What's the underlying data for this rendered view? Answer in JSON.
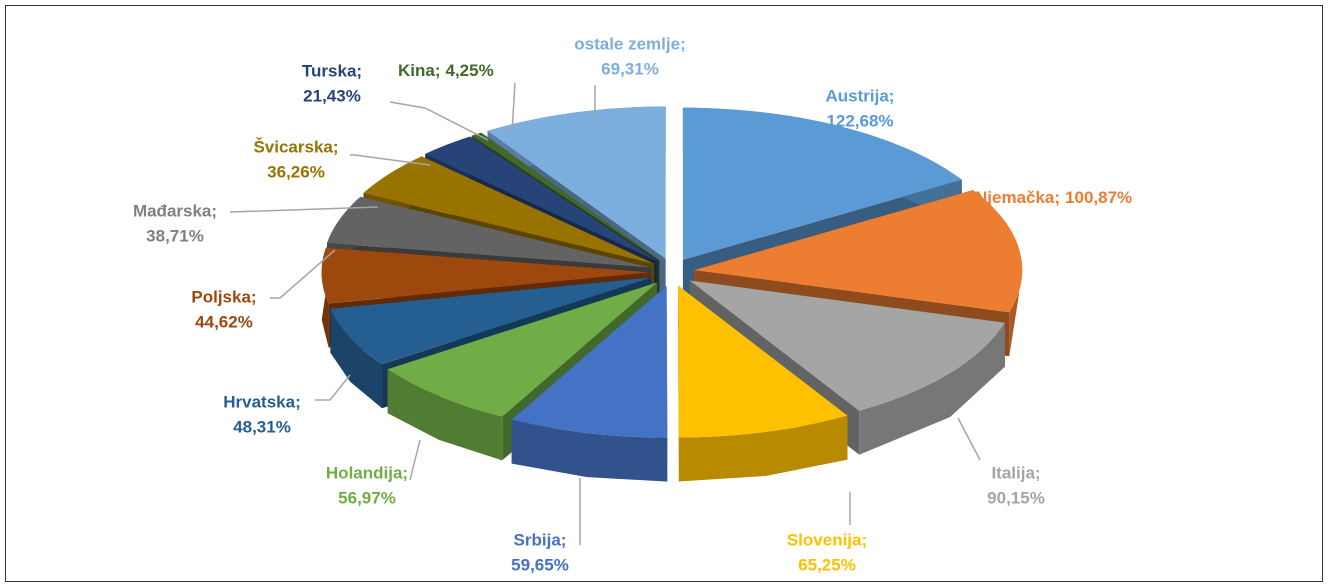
{
  "chart_data": {
    "type": "pie",
    "style": "3d-exploded",
    "categories": [
      "Austrija;",
      "Njemačka;",
      "Italija;",
      "Slovenija;",
      "Srbija;",
      "Holandija;",
      "Hrvatska;",
      "Poljska;",
      "Mađarska;",
      "Švicarska;",
      "Turska;",
      "Kina;",
      "ostale zemlje;"
    ],
    "values": [
      122.68,
      100.87,
      90.15,
      65.25,
      59.65,
      56.97,
      48.31,
      44.62,
      38.71,
      36.26,
      21.43,
      4.25,
      69.31
    ],
    "value_labels": [
      "122,68%",
      "100,87%",
      "90,15%",
      "65,25%",
      "59,65%",
      "56,97%",
      "48,31%",
      "44,62%",
      "38,71%",
      "36,26%",
      "21,43%",
      "4,25%",
      "69,31%"
    ],
    "colors": [
      "#5b9bd5",
      "#ed7d31",
      "#a5a5a5",
      "#ffc000",
      "#4472c4",
      "#70ad47",
      "#255e91",
      "#9e480e",
      "#636363",
      "#997300",
      "#264478",
      "#43682b",
      "#7cafdd"
    ],
    "label_colors": [
      "#5b9bd5",
      "#ed7d31",
      "#a5a5a5",
      "#ffc000",
      "#4472c4",
      "#70ad47",
      "#255e91",
      "#9e480e",
      "#808080",
      "#997300",
      "#264478",
      "#43682b",
      "#7cafdd"
    ]
  }
}
